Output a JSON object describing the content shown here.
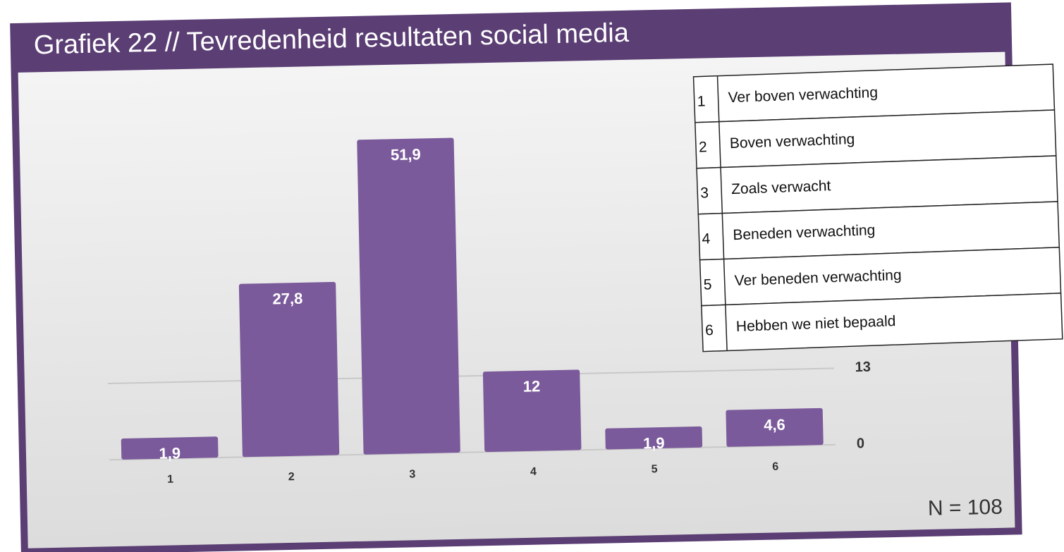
{
  "chart_data": {
    "type": "bar",
    "title": "Grafiek 22 // Tevredenheid resultaten social media",
    "categories": [
      "1",
      "2",
      "3",
      "4",
      "5",
      "6"
    ],
    "values": [
      1.9,
      27.8,
      51.9,
      12,
      1.9,
      4.6
    ],
    "value_labels": [
      "1,9",
      "27,8",
      "51,9",
      "12",
      "1,9",
      "4,6"
    ],
    "color": "#7b5a9b",
    "ylim": [
      0,
      54
    ],
    "yticks": [
      0,
      13
    ],
    "grid": true,
    "annotation": "N = 108",
    "legend_table": [
      {
        "key": "1",
        "label": "Ver boven verwachting"
      },
      {
        "key": "2",
        "label": "Boven verwachting"
      },
      {
        "key": "3",
        "label": "Zoals verwacht"
      },
      {
        "key": "4",
        "label": "Beneden verwachting"
      },
      {
        "key": "5",
        "label": "Ver beneden verwachting"
      },
      {
        "key": "6",
        "label": "Hebben we niet bepaald"
      }
    ]
  }
}
